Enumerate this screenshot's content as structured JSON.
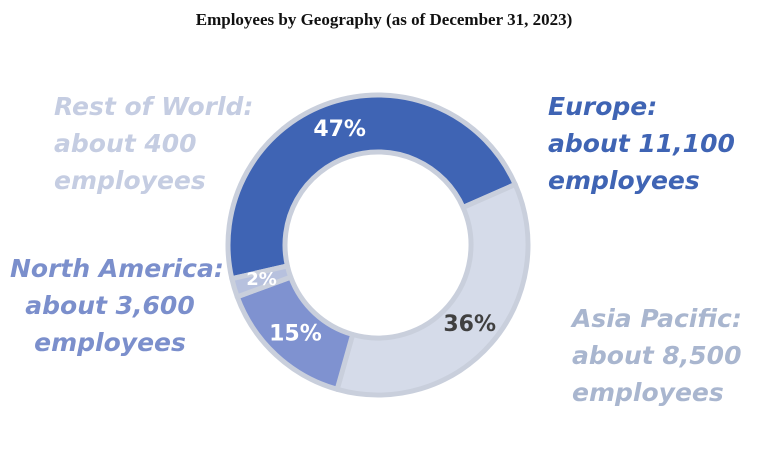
{
  "chart_data": {
    "type": "pie",
    "title": "Employees by Geography (as of December 31, 2023)",
    "slices": [
      {
        "name": "Europe",
        "percent": 47,
        "percent_label": "47%",
        "callout": [
          "Europe:",
          "about 11,100",
          "employees"
        ],
        "color": "#3f64b4",
        "text_color": "#3f64b4",
        "pct_color": "#ffffff"
      },
      {
        "name": "Asia Pacific",
        "percent": 36,
        "percent_label": "36%",
        "callout": [
          "Asia Pacific:",
          "about 8,500",
          "employees"
        ],
        "color": "#d5dbe9",
        "text_color": "#a9b6cf",
        "pct_color": "#404040"
      },
      {
        "name": "North America",
        "percent": 15,
        "percent_label": "15%",
        "callout": [
          "North America:",
          "about 3,600",
          "employees"
        ],
        "color": "#7f92d0",
        "text_color": "#7b8fcc",
        "pct_color": "#ffffff"
      },
      {
        "name": "Rest of World",
        "percent": 2,
        "percent_label": "2%",
        "callout": [
          "Rest of World:",
          "about 400",
          "employees"
        ],
        "color": "#b7c1de",
        "text_color": "#c5cde2",
        "pct_color": "#ffffff"
      }
    ]
  }
}
